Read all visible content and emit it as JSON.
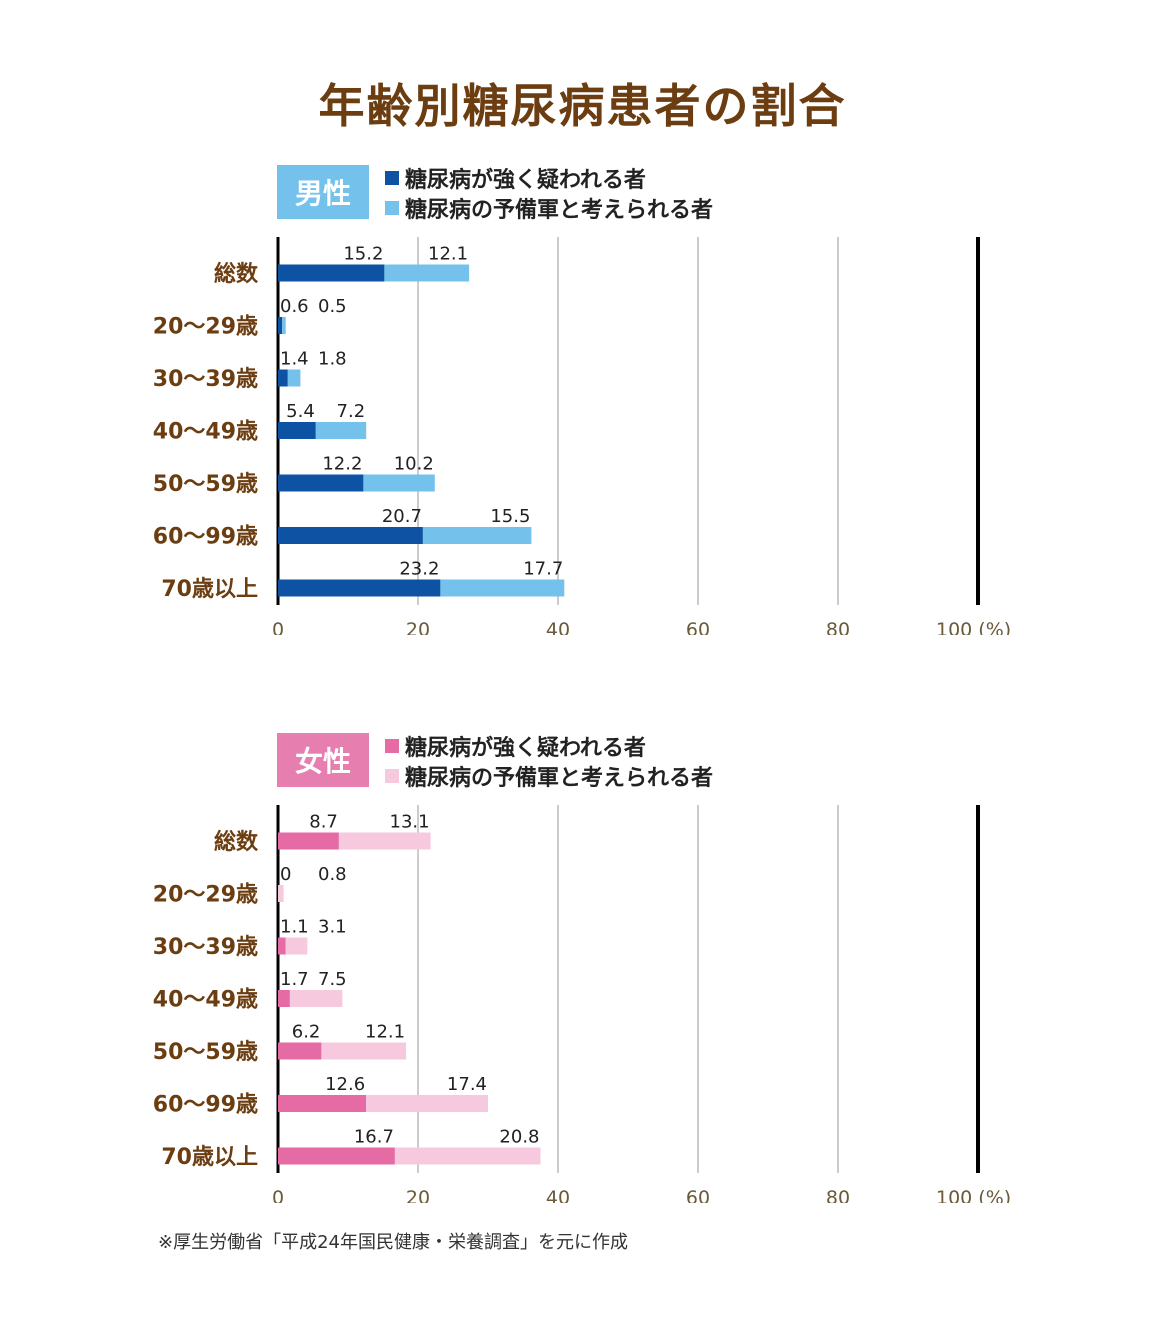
{
  "title": "年齢別糖尿病患者の割合",
  "axis": {
    "ticks": [
      "0",
      "20",
      "40",
      "60",
      "80",
      "100 (%)"
    ]
  },
  "panels": {
    "male": {
      "label": "男性",
      "badge_color": "#74c1ec",
      "legend": [
        {
          "text": "糖尿病が強く疑われる者",
          "color": "#0e52a4"
        },
        {
          "text": "糖尿病の予備軍と考えられる者",
          "color": "#74c1ec"
        }
      ]
    },
    "female": {
      "label": "女性",
      "badge_color": "#e67fb0",
      "legend": [
        {
          "text": "糖尿病が強く疑われる者",
          "color": "#e46ba3"
        },
        {
          "text": "糖尿病の予備軍と考えられる者",
          "color": "#f6c9de"
        }
      ]
    }
  },
  "chart_data": [
    {
      "type": "bar",
      "orientation": "horizontal",
      "stacked": true,
      "title": "男性",
      "categories": [
        "総数",
        "20〜29歳",
        "30〜39歳",
        "40〜49歳",
        "50〜59歳",
        "60〜99歳",
        "70歳以上"
      ],
      "series": [
        {
          "name": "糖尿病が強く疑われる者",
          "values": [
            15.2,
            0.6,
            1.4,
            5.4,
            12.2,
            20.7,
            23.2
          ],
          "labels": [
            "15.2",
            "0.6",
            "1.4",
            "5.4",
            "12.2",
            "20.7",
            "23.2"
          ],
          "color": "#0e52a4"
        },
        {
          "name": "糖尿病の予備軍と考えられる者",
          "values": [
            12.1,
            0.5,
            1.8,
            7.2,
            10.2,
            15.5,
            17.7
          ],
          "labels": [
            "12.1",
            "0.5",
            "1.8",
            "7.2",
            "10.2",
            "15.5",
            "17.7"
          ],
          "color": "#74c1ec"
        }
      ],
      "xlim": [
        0,
        100
      ],
      "xticks": [
        0,
        20,
        40,
        60,
        80,
        100
      ],
      "grid": true
    },
    {
      "type": "bar",
      "orientation": "horizontal",
      "stacked": true,
      "title": "女性",
      "categories": [
        "総数",
        "20〜29歳",
        "30〜39歳",
        "40〜49歳",
        "50〜59歳",
        "60〜99歳",
        "70歳以上"
      ],
      "series": [
        {
          "name": "糖尿病が強く疑われる者",
          "values": [
            8.7,
            0,
            1.1,
            1.7,
            6.2,
            12.6,
            16.7
          ],
          "labels": [
            "8.7",
            "0",
            "1.1",
            "1.7",
            "6.2",
            "12.6",
            "16.7"
          ],
          "color": "#e46ba3"
        },
        {
          "name": "糖尿病の予備軍と考えられる者",
          "values": [
            13.1,
            0.8,
            3.1,
            7.5,
            12.1,
            17.4,
            20.8
          ],
          "labels": [
            "13.1",
            "0.8",
            "3.1",
            "7.5",
            "12.1",
            "17.4",
            "20.8"
          ],
          "color": "#f6c9de"
        }
      ],
      "xlim": [
        0,
        100
      ],
      "xticks": [
        0,
        20,
        40,
        60,
        80,
        100
      ],
      "grid": true
    }
  ],
  "source_note": "※厚生労働省「平成24年国民健康・栄養調査」を元に作成"
}
